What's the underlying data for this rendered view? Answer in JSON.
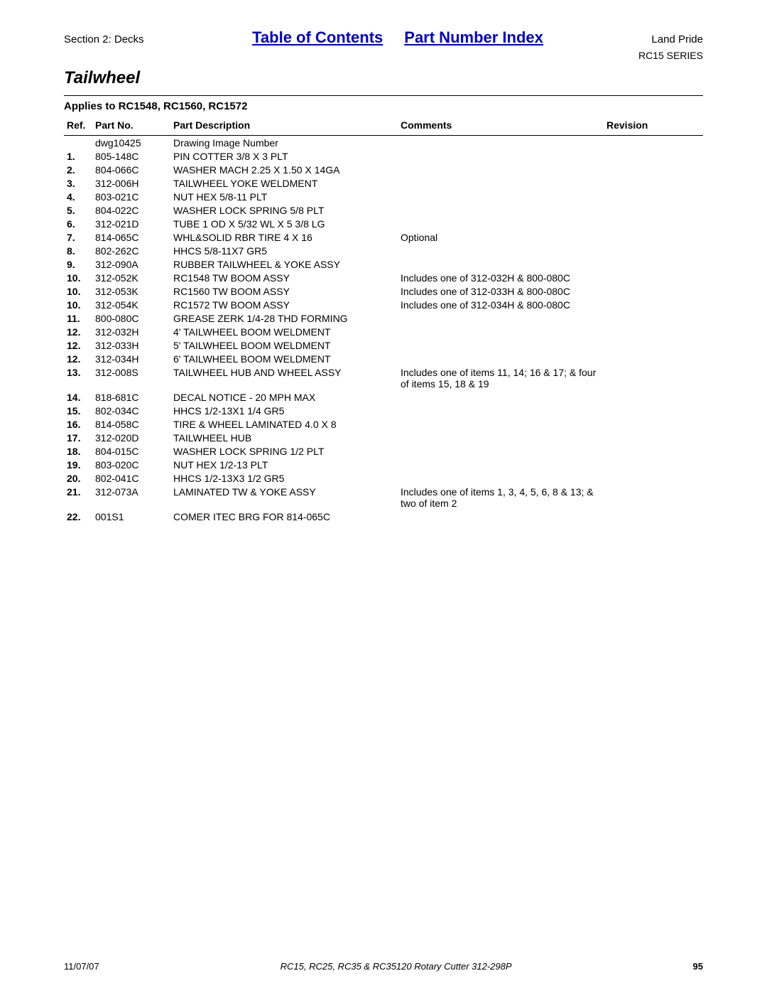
{
  "header": {
    "section": "Section 2: Decks",
    "toc_link": "Table of Contents",
    "pni_link": "Part Number Index",
    "brand": "Land Pride",
    "series": "RC15 SERIES"
  },
  "title": "Tailwheel",
  "applies_to": "Applies to RC1548, RC1560, RC1572",
  "columns": {
    "ref": "Ref.",
    "part_no": "Part No.",
    "desc": "Part Description",
    "comments": "Comments",
    "revision": "Revision"
  },
  "rows": [
    {
      "ref": "",
      "part": "dwg10425",
      "desc": "Drawing Image Number",
      "comm": ""
    },
    {
      "ref": "1.",
      "part": "805-148C",
      "desc": "PIN COTTER 3/8 X 3 PLT",
      "comm": ""
    },
    {
      "ref": "2.",
      "part": "804-066C",
      "desc": "WASHER MACH 2.25 X 1.50 X 14GA",
      "comm": ""
    },
    {
      "ref": "3.",
      "part": "312-006H",
      "desc": "TAILWHEEL YOKE WELDMENT",
      "comm": ""
    },
    {
      "ref": "4.",
      "part": "803-021C",
      "desc": "NUT HEX 5/8-11 PLT",
      "comm": ""
    },
    {
      "ref": "5.",
      "part": "804-022C",
      "desc": "WASHER LOCK SPRING 5/8 PLT",
      "comm": ""
    },
    {
      "ref": "6.",
      "part": "312-021D",
      "desc": "TUBE 1 OD X 5/32 WL X 5 3/8 LG",
      "comm": ""
    },
    {
      "ref": "7.",
      "part": "814-065C",
      "desc": "WHL&SOLID RBR TIRE 4 X 16",
      "comm": "Optional"
    },
    {
      "ref": "8.",
      "part": "802-262C",
      "desc": "HHCS 5/8-11X7 GR5",
      "comm": ""
    },
    {
      "ref": "9.",
      "part": "312-090A",
      "desc": "RUBBER TAILWHEEL & YOKE ASSY",
      "comm": ""
    },
    {
      "ref": "10.",
      "part": "312-052K",
      "desc": "RC1548 TW BOOM ASSY",
      "comm": "Includes one of 312-032H & 800-080C"
    },
    {
      "ref": "10.",
      "part": "312-053K",
      "desc": "RC1560 TW BOOM ASSY",
      "comm": "Includes one of 312-033H & 800-080C"
    },
    {
      "ref": "10.",
      "part": "312-054K",
      "desc": "RC1572 TW BOOM ASSY",
      "comm": "Includes one of 312-034H & 800-080C"
    },
    {
      "ref": "11.",
      "part": "800-080C",
      "desc": "GREASE ZERK 1/4-28 THD FORMING",
      "comm": ""
    },
    {
      "ref": "12.",
      "part": "312-032H",
      "desc": "4' TAILWHEEL BOOM WELDMENT",
      "comm": ""
    },
    {
      "ref": "12.",
      "part": "312-033H",
      "desc": "5' TAILWHEEL BOOM WELDMENT",
      "comm": ""
    },
    {
      "ref": "12.",
      "part": "312-034H",
      "desc": "6' TAILWHEEL BOOM WELDMENT",
      "comm": ""
    },
    {
      "ref": "13.",
      "part": "312-008S",
      "desc": "TAILWHEEL HUB AND WHEEL ASSY",
      "comm": "Includes one of items 11, 14; 16 & 17; & four of items 15, 18 & 19"
    },
    {
      "ref": "14.",
      "part": "818-681C",
      "desc": "DECAL NOTICE - 20 MPH MAX",
      "comm": ""
    },
    {
      "ref": "15.",
      "part": "802-034C",
      "desc": "HHCS 1/2-13X1 1/4 GR5",
      "comm": ""
    },
    {
      "ref": "16.",
      "part": "814-058C",
      "desc": "TIRE & WHEEL LAMINATED 4.0 X 8",
      "comm": ""
    },
    {
      "ref": "17.",
      "part": "312-020D",
      "desc": "TAILWHEEL HUB",
      "comm": ""
    },
    {
      "ref": "18.",
      "part": "804-015C",
      "desc": "WASHER LOCK SPRING 1/2 PLT",
      "comm": ""
    },
    {
      "ref": "19.",
      "part": "803-020C",
      "desc": "NUT HEX 1/2-13 PLT",
      "comm": ""
    },
    {
      "ref": "20.",
      "part": "802-041C",
      "desc": "HHCS 1/2-13X3 1/2 GR5",
      "comm": ""
    },
    {
      "ref": "21.",
      "part": "312-073A",
      "desc": "LAMINATED TW & YOKE ASSY",
      "comm": "Includes one of items 1, 3, 4, 5, 6, 8 & 13; & two of item 2"
    },
    {
      "ref": "22.",
      "part": "001S1",
      "desc": "COMER ITEC BRG FOR 814-065C",
      "comm": ""
    }
  ],
  "footer": {
    "date": "11/07/07",
    "doc": "RC15, RC25, RC35 & RC35120 Rotary Cutter 312-298P",
    "page": "95"
  }
}
